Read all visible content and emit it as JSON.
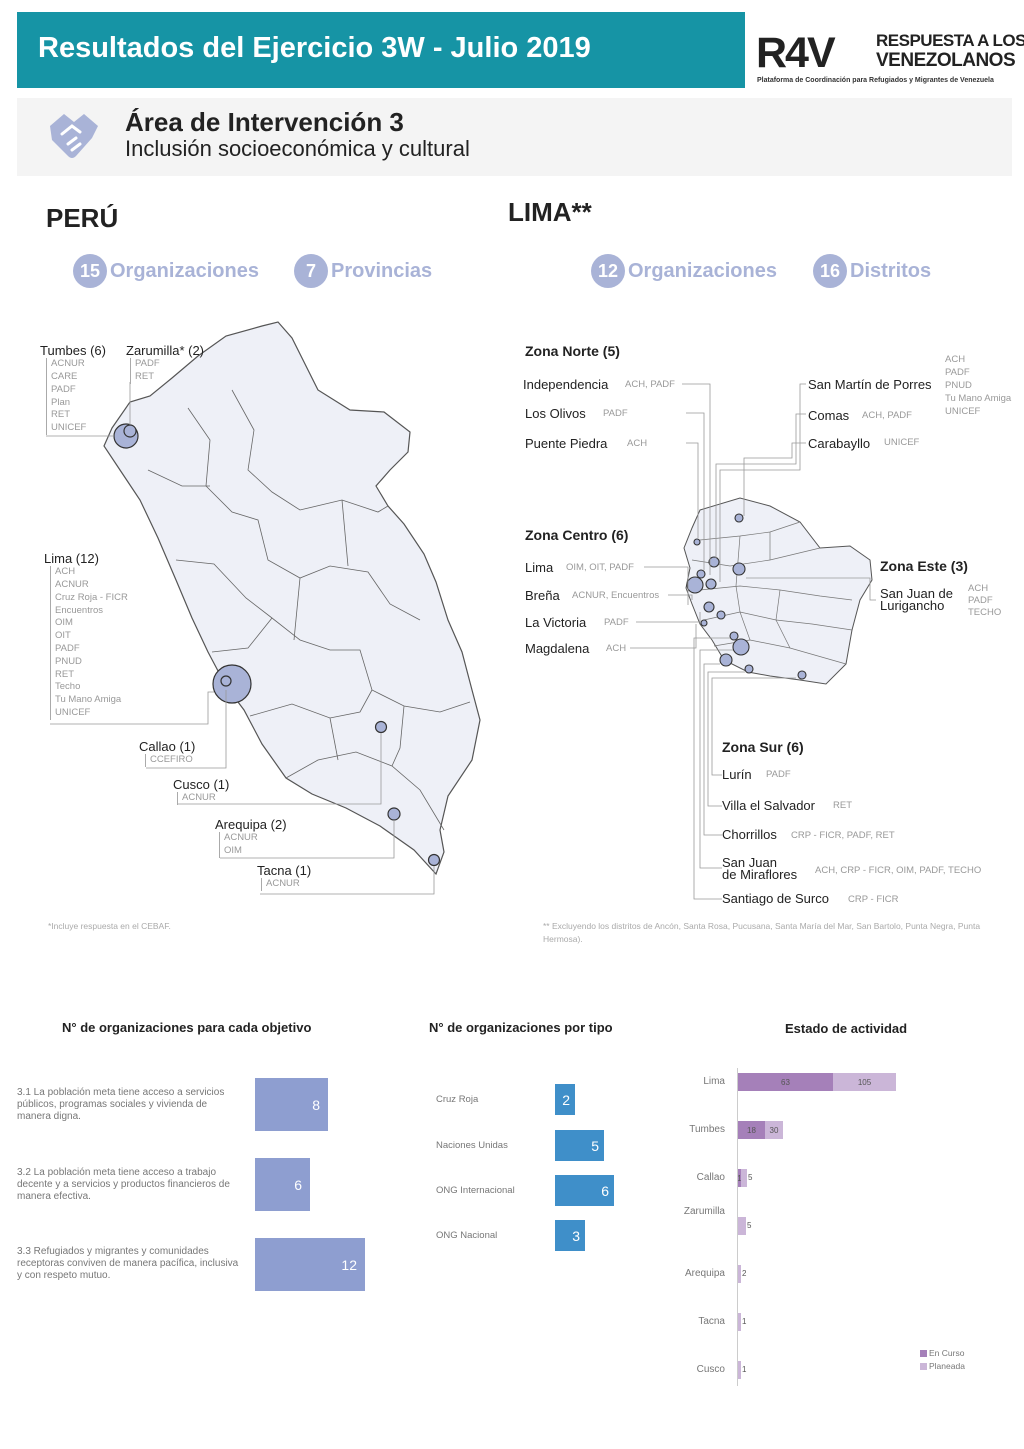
{
  "header": {
    "title": "Resultados del Ejercicio 3W - Julio 2019",
    "logo_mark": "R4V",
    "logo_line1": "RESPUESTA A LOS",
    "logo_line2": "VENEZOLANOS",
    "logo_subtitle": "Plataforma de Coordinación para Refugiados y Migrantes de Venezuela",
    "brand_color": "#1694a5"
  },
  "area": {
    "icon": "handshake-icon",
    "title": "Área de Intervención 3",
    "subtitle": "Inclusión socioeconómica y cultural"
  },
  "peru": {
    "title": "PERÚ",
    "stats": [
      {
        "value": "15",
        "label": "Organizaciones"
      },
      {
        "value": "7",
        "label": "Provincias"
      }
    ],
    "regions": [
      {
        "name": "Tumbes (6)",
        "orgs": [
          "ACNUR",
          "CARE",
          "PADF",
          "Plan",
          "RET",
          "UNICEF"
        ]
      },
      {
        "name": "Zarumilla* (2)",
        "orgs": [
          "PADF",
          "RET"
        ]
      },
      {
        "name": "Lima (12)",
        "orgs": [
          "ACH",
          "ACNUR",
          "Cruz Roja - FICR",
          "Encuentros",
          "OIM",
          "OIT",
          "PADF",
          "PNUD",
          "RET",
          "Techo",
          "Tu Mano Amiga",
          "UNICEF"
        ]
      },
      {
        "name": "Callao (1)",
        "orgs": [
          "CCEFIRO"
        ]
      },
      {
        "name": "Cusco (1)",
        "orgs": [
          "ACNUR"
        ]
      },
      {
        "name": "Arequipa (2)",
        "orgs": [
          "ACNUR",
          "OIM"
        ]
      },
      {
        "name": "Tacna (1)",
        "orgs": [
          "ACNUR"
        ]
      }
    ],
    "note": "*Incluye respuesta en el CEBAF."
  },
  "lima": {
    "title": "LIMA**",
    "stats": [
      {
        "value": "12",
        "label": "Organizaciones"
      },
      {
        "value": "16",
        "label": "Distritos"
      }
    ],
    "zona_norte": {
      "title": "Zona Norte (5)",
      "districts": [
        {
          "name": "Independencia",
          "orgs": "ACH, PADF"
        },
        {
          "name": "Los Olivos",
          "orgs": "PADF"
        },
        {
          "name": "Puente Piedra",
          "orgs": "ACH"
        },
        {
          "name": "San Martín de Porres",
          "orgs": "ACH\nPADF\nPNUD\nTu Mano Amiga\nUNICEF"
        },
        {
          "name": "Comas",
          "orgs": "ACH, PADF"
        },
        {
          "name": "Carabayllo",
          "orgs": "UNICEF"
        }
      ]
    },
    "zona_centro": {
      "title": "Zona Centro (6)",
      "districts": [
        {
          "name": "Lima",
          "orgs": "OIM, OIT, PADF"
        },
        {
          "name": "Breña",
          "orgs": "ACNUR, Encuentros"
        },
        {
          "name": "La Victoria",
          "orgs": "PADF"
        },
        {
          "name": "Magdalena",
          "orgs": "ACH"
        }
      ]
    },
    "zona_este": {
      "title": "Zona Este (3)",
      "districts": [
        {
          "name": "San Juan de\nLurigancho",
          "orgs": "ACH\nPADF\nTECHO"
        }
      ]
    },
    "zona_sur": {
      "title": "Zona Sur (6)",
      "districts": [
        {
          "name": "Lurín",
          "orgs": "PADF"
        },
        {
          "name": "Villa el Salvador",
          "orgs": "RET"
        },
        {
          "name": "Chorrillos",
          "orgs": "CRP - FICR, PADF, RET"
        },
        {
          "name": "San Juan\nde Miraflores",
          "orgs": "ACH, CRP - FICR, OIM, PADF, TECHO"
        },
        {
          "name": "Santiago de Surco",
          "orgs": "CRP - FICR"
        }
      ]
    },
    "note": "** Excluyendo los distritos de Ancón, Santa Rosa, Pucusana, Santa María del Mar, San Bartolo, Punta Negra, Punta Hermosa)."
  },
  "charts": {
    "objetivos": {
      "title": "N° de organizaciones para cada objetivo",
      "color": "#8e9ed0",
      "items": [
        {
          "label": "3.1 La población meta tiene acceso a servicios públicos, programas sociales y vivienda de manera digna.",
          "value": 8
        },
        {
          "label": "3.2 La población meta tiene acceso a trabajo decente y a servicios y productos financieros de manera efectiva.",
          "value": 6
        },
        {
          "label": "3.3 Refugiados y migrantes y comunidades receptoras conviven de manera pacífica, inclusiva y con respeto mutuo.",
          "value": 12
        }
      ]
    },
    "tipos": {
      "title": "N° de organizaciones por tipo",
      "color": "#3f8fc9",
      "items": [
        {
          "label": "Cruz Roja",
          "value": 2
        },
        {
          "label": "Naciones Unidas",
          "value": 5
        },
        {
          "label": "ONG Internacional",
          "value": 6
        },
        {
          "label": "ONG Nacional",
          "value": 3
        }
      ]
    },
    "estado": {
      "title": "Estado de actividad",
      "legend": [
        {
          "label": "En Curso",
          "color": "#a580b9"
        },
        {
          "label": "Planeada",
          "color": "#cbb6d8"
        }
      ],
      "items": [
        {
          "label": "Lima",
          "en_curso": 63,
          "planeada": 105
        },
        {
          "label": "Tumbes",
          "en_curso": 18,
          "planeada": 30
        },
        {
          "label": "Callao",
          "en_curso": 1,
          "planeada": 5
        },
        {
          "label": "Zarumilla",
          "en_curso": 0,
          "planeada": 5
        },
        {
          "label": "Arequipa",
          "en_curso": 0,
          "planeada": 2
        },
        {
          "label": "Tacna",
          "en_curso": 0,
          "planeada": 1
        },
        {
          "label": "Cusco",
          "en_curso": 0,
          "planeada": 1
        }
      ]
    }
  }
}
